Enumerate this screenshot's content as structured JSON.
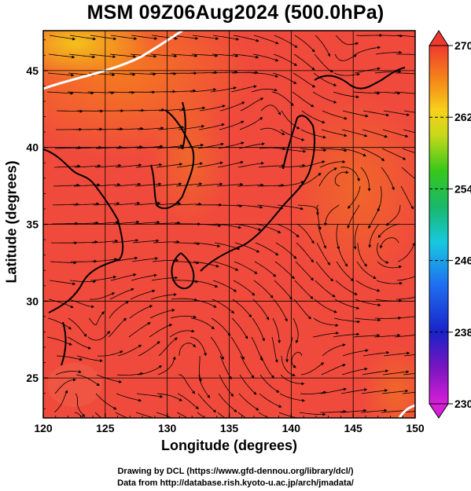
{
  "title": "MSM 09Z06Aug2024 (500.0hPa)",
  "x_axis": {
    "label": "Longitude (degrees)",
    "ticks": [
      "120",
      "125",
      "130",
      "135",
      "140",
      "145",
      "150"
    ],
    "range": [
      120,
      150
    ]
  },
  "y_axis": {
    "label": "Latitude  (degrees)",
    "ticks": [
      "25",
      "30",
      "35",
      "40",
      "45"
    ],
    "range": [
      22.4,
      47.6
    ]
  },
  "colorbar": {
    "ticks": [
      "270",
      "262",
      "254",
      "246",
      "238",
      "230"
    ],
    "range": [
      230,
      270
    ]
  },
  "credits": {
    "line1": "Drawing by DCL (https://www.gfd-dennou.org/library/dcl/)",
    "line2": "Data from http://database.rish.kyoto-u.ac.jp/arch/jmadata/"
  },
  "colors": {
    "field_base": "#f04a3c",
    "field_warm": "#f06020",
    "field_warmer": "#f58a18",
    "field_yellow": "#f4c818",
    "contour_white": "#ffffff",
    "stream": "#000000"
  }
}
